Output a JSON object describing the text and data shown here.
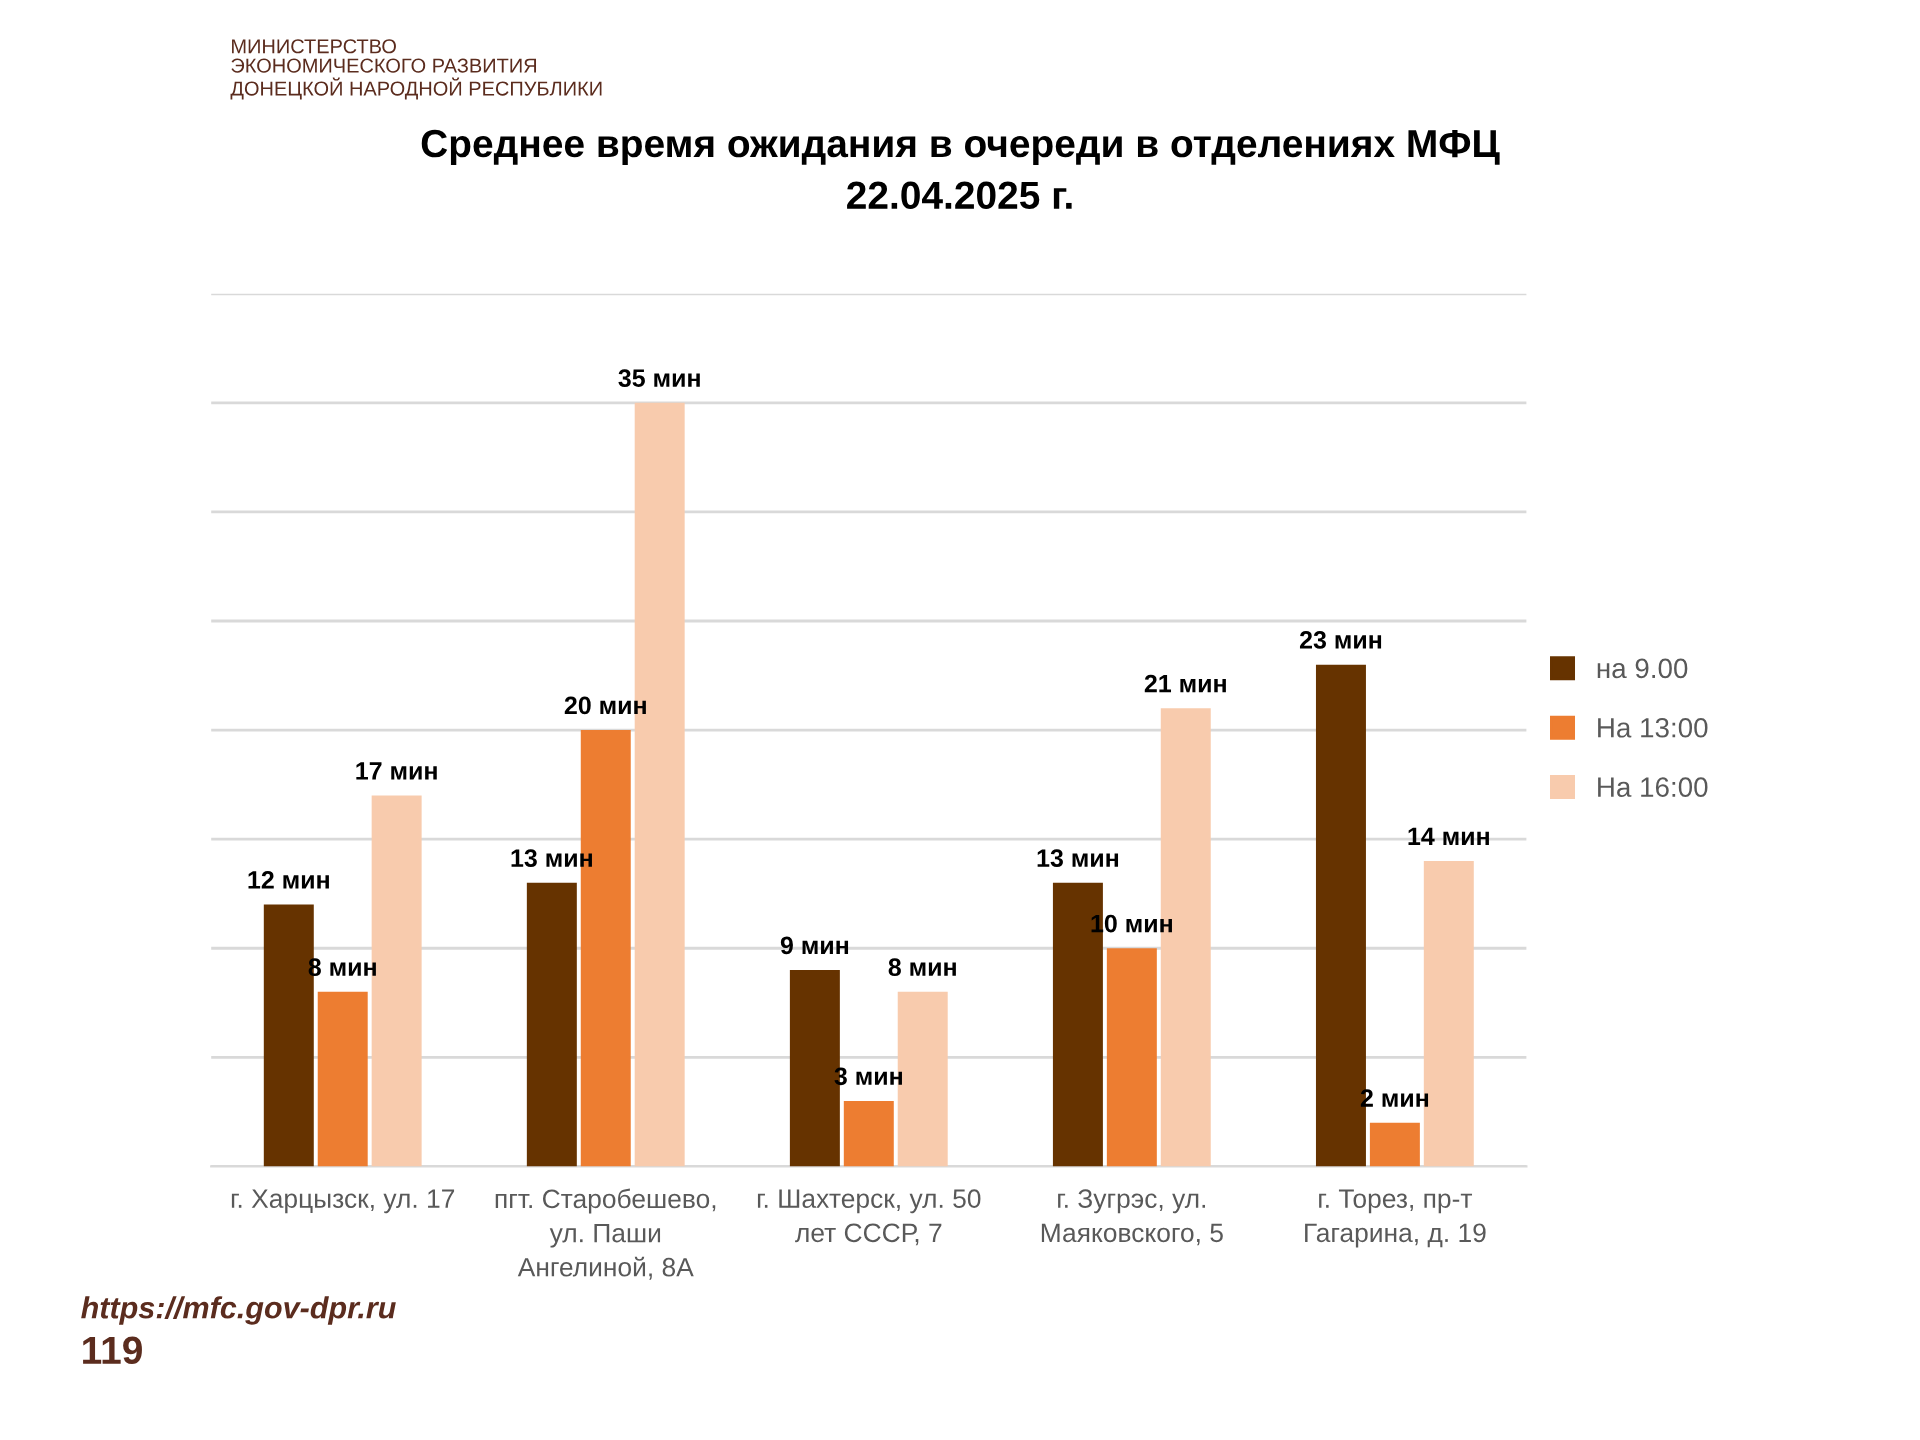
{
  "chart_data": {
    "type": "bar",
    "title": "Среднее время ожидания в очереди в отделениях МФЦ\n22.04.2025 г.",
    "categories": [
      "г. Харцызск, ул. 17",
      "пгт. Старобешево, ул. Паши Ангелиной, 8А",
      "г. Шахтерск, ул. 50 лет СССР, 7",
      "г. Зугрэс, ул. Маяковского, 5",
      "г. Торез, пр-т Гагарина, д. 19"
    ],
    "series": [
      {
        "name": "на 9.00",
        "color": "#663300",
        "values": [
          12,
          13,
          9,
          13,
          23
        ],
        "value_labels": [
          "12 мин",
          "13 мин",
          "9 мин",
          "13 мин",
          "23 мин"
        ]
      },
      {
        "name": "На 13:00",
        "color": "#ed7d31",
        "values": [
          8,
          20,
          3,
          10,
          2
        ],
        "value_labels": [
          "8 мин",
          "20 мин",
          "3 мин",
          "10 мин",
          "2 мин"
        ]
      },
      {
        "name": "На 16:00",
        "color": "#f8cbad",
        "values": [
          17,
          35,
          8,
          21,
          14
        ],
        "value_labels": [
          "17 мин",
          "35 мин",
          "8 мин",
          "21 мин",
          "14 мин"
        ]
      }
    ],
    "ylim": [
      0,
      40
    ],
    "yticks": [
      {
        "value": 0,
        "label": null
      },
      {
        "value": 5,
        "label": null
      },
      {
        "value": 10,
        "label": null
      },
      {
        "value": 15,
        "label": null
      },
      {
        "value": 20,
        "label": null
      },
      {
        "value": 25,
        "label": null
      },
      {
        "value": 30,
        "label": null
      },
      {
        "value": 35,
        "label": null
      },
      {
        "value": 40,
        "label": null
      }
    ],
    "tick_labels": "x",
    "grid": "y",
    "legend": "right",
    "annotations": [
      "МИНИСТЕРСТВО\nЭКОНОМИЧЕСКОГО РАЗВИТИЯ\nДОНЕЦКОЙ НАРОДНОЙ РЕСПУБЛИКИ",
      "https://mfc.gov-dpr.ru",
      "119"
    ]
  }
}
